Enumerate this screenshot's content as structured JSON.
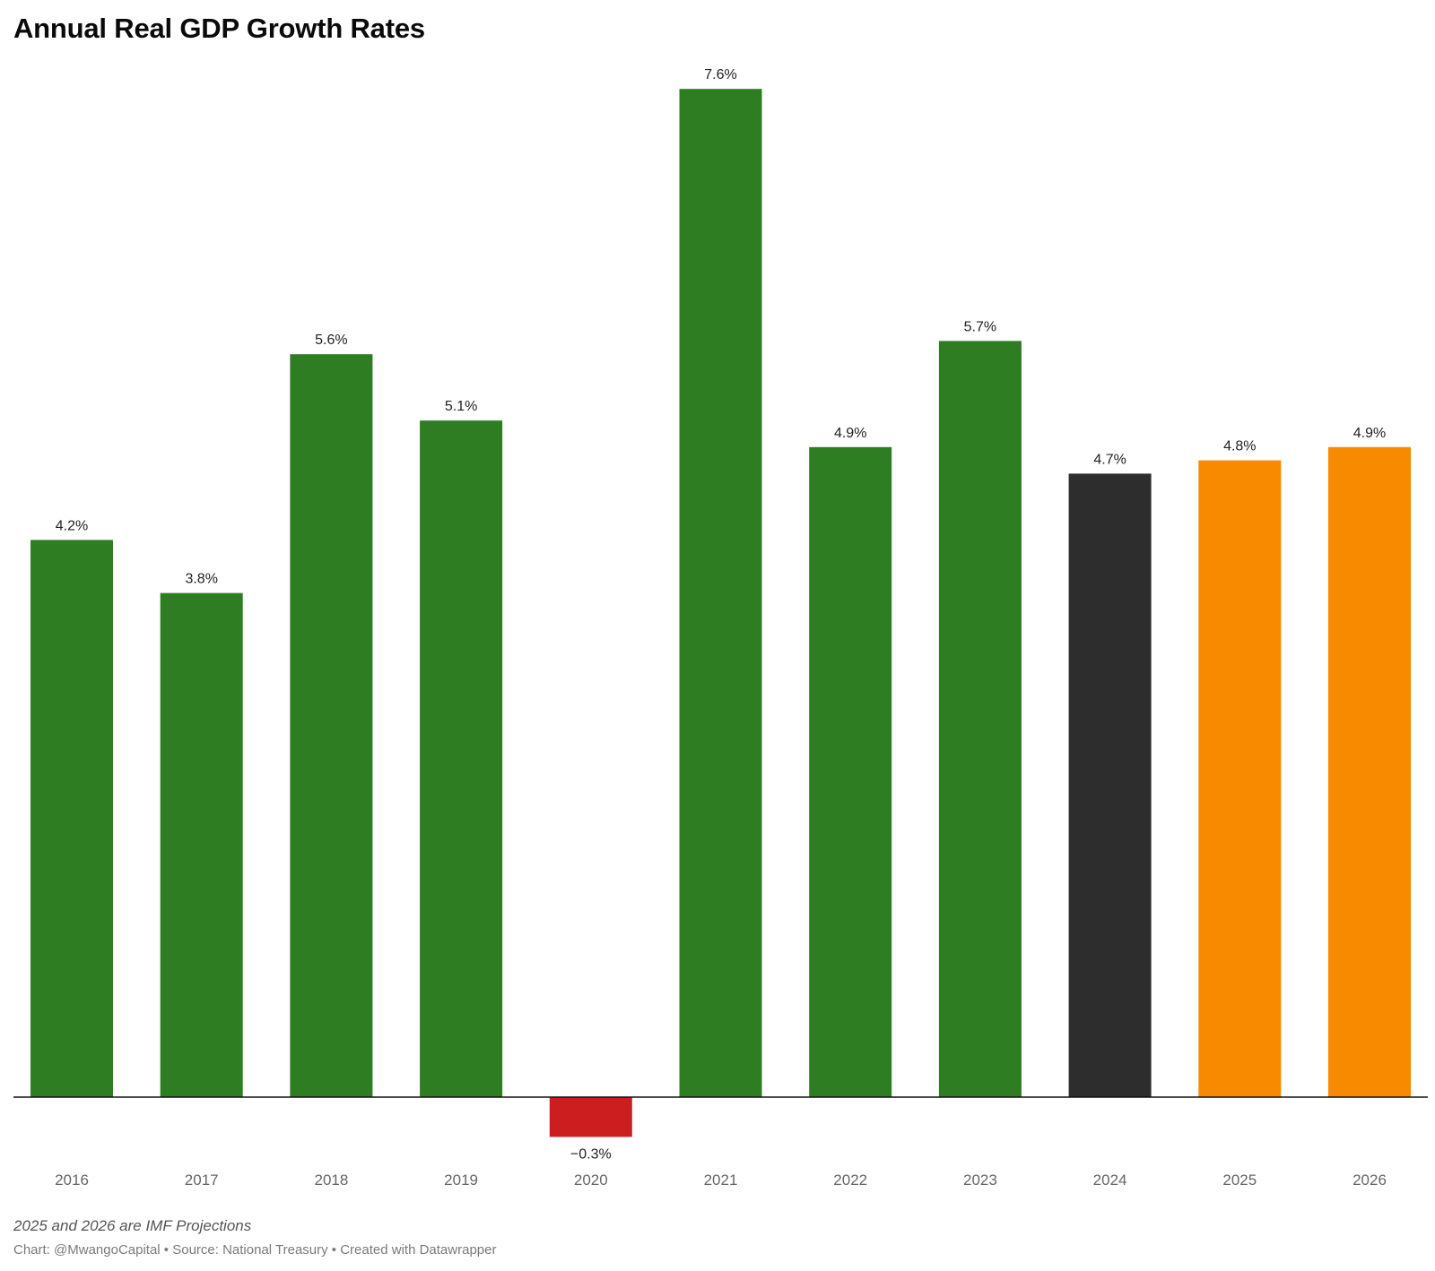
{
  "chart_data": {
    "type": "bar",
    "title": "Annual Real GDP Growth Rates",
    "categories": [
      "2016",
      "2017",
      "2018",
      "2019",
      "2020",
      "2021",
      "2022",
      "2023",
      "2024",
      "2025",
      "2026"
    ],
    "values": [
      4.2,
      3.8,
      5.6,
      5.1,
      -0.3,
      7.6,
      4.9,
      5.7,
      4.7,
      4.8,
      4.9
    ],
    "value_labels": [
      "4.2%",
      "3.8%",
      "5.6%",
      "5.1%",
      "−0.3%",
      "7.6%",
      "4.9%",
      "5.7%",
      "4.7%",
      "4.8%",
      "4.9%"
    ],
    "bar_colors": [
      "#2e7d22",
      "#2e7d22",
      "#2e7d22",
      "#2e7d22",
      "#cc1e1e",
      "#2e7d22",
      "#2e7d22",
      "#2e7d22",
      "#2d2d2d",
      "#f88a00",
      "#f88a00"
    ],
    "ylim": [
      -0.3,
      7.6
    ],
    "grid": false,
    "xlabel": "",
    "ylabel": ""
  },
  "notes": {
    "projection_note": "2025 and 2026 are IMF Projections",
    "footer": "Chart: @MwangoCapital • Source: National Treasury • Created with Datawrapper"
  }
}
